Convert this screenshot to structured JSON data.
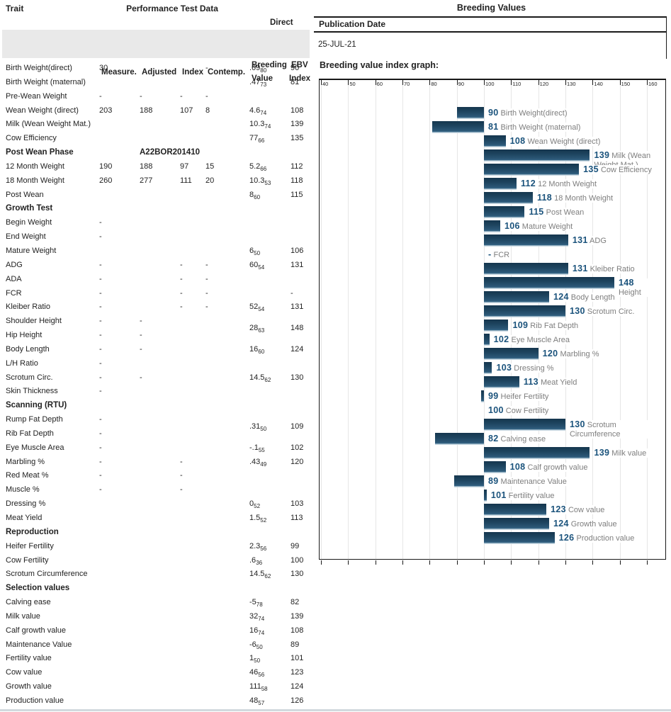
{
  "table": {
    "header": {
      "trait": "Trait",
      "performance": "Performance Test Data",
      "direct": "Direct",
      "breeding": "Breeding",
      "value": "Value",
      "ebv": "EBV",
      "ebv_index": "Index",
      "measure": "Measure.",
      "adjusted": "Adjusted",
      "index": "Index",
      "contemp": "Contemp."
    },
    "rows": [
      {
        "trait": "Birth Weight(direct)",
        "measure": "30",
        "contemp": "-",
        "dbv": ".69",
        "acc": "80",
        "ebv": "90"
      },
      {
        "trait": "Birth Weight (maternal)",
        "dbv": ".47",
        "acc": "73",
        "ebv": "81"
      },
      {
        "trait": "Pre-Wean Weight",
        "measure": "-",
        "adjusted": "-",
        "index": "-",
        "contemp": "-"
      },
      {
        "trait": "Wean Weight (direct)",
        "measure": "203",
        "adjusted": "188",
        "index": "107",
        "contemp": "8",
        "dbv": "4.6",
        "acc": "74",
        "ebv": "108"
      },
      {
        "trait": "Milk (Wean Weight Mat.)",
        "dbv": "10.3",
        "acc": "74",
        "ebv": "139"
      },
      {
        "trait": "Cow Efficiency",
        "dbv": "77",
        "acc": "66",
        "ebv": "135"
      },
      {
        "trait": "Post Wean Phase",
        "adjusted": "A22BOR201410",
        "section": true
      },
      {
        "trait": "12 Month Weight",
        "measure": "190",
        "adjusted": "188",
        "index": "97",
        "contemp": "15",
        "dbv": "5.2",
        "acc": "66",
        "ebv": "112"
      },
      {
        "trait": "18 Month Weight",
        "measure": "260",
        "adjusted": "277",
        "index": "111",
        "contemp": "20",
        "dbv": "10.3",
        "acc": "53",
        "ebv": "118"
      },
      {
        "trait": "Post Wean",
        "dbv": "8",
        "acc": "60",
        "ebv": "115"
      },
      {
        "trait": "Growth Test",
        "section": true
      },
      {
        "trait": "Begin Weight",
        "measure": "-"
      },
      {
        "trait": "End Weight",
        "measure": "-"
      },
      {
        "trait": "Mature Weight",
        "dbv": "6",
        "acc": "50",
        "ebv": "106"
      },
      {
        "trait": "ADG",
        "measure": "-",
        "index": "-",
        "contemp": "-",
        "dbv": "60",
        "acc": "54",
        "ebv": "131"
      },
      {
        "trait": "ADA",
        "measure": "-",
        "index": "-",
        "contemp": "-"
      },
      {
        "trait": "FCR",
        "measure": "-",
        "index": "-",
        "contemp": "-",
        "ebv": "-"
      },
      {
        "trait": "Kleiber Ratio",
        "measure": "-",
        "index": "-",
        "contemp": "-",
        "dbv": "52",
        "acc": "54",
        "ebv": "131"
      },
      {
        "trait": "Shoulder Height",
        "measure": "-",
        "adjusted": "-",
        "dbv": "28",
        "acc": "63",
        "ebv": "148",
        "shift": true
      },
      {
        "trait": "Hip Height",
        "measure": "-",
        "adjusted": "-"
      },
      {
        "trait": "Body Length",
        "measure": "-",
        "adjusted": "-",
        "dbv": "16",
        "acc": "60",
        "ebv": "124"
      },
      {
        "trait": "L/H Ratio",
        "measure": "-"
      },
      {
        "trait": "Scrotum Circ.",
        "measure": "-",
        "adjusted": "-",
        "dbv": "14.5",
        "acc": "62",
        "ebv": "130"
      },
      {
        "trait": "Skin Thickness",
        "measure": "-"
      },
      {
        "trait": "Scanning (RTU)",
        "section": true
      },
      {
        "trait": "Rump Fat Depth",
        "measure": "-",
        "dbv": ".31",
        "acc": "50",
        "ebv": "109",
        "shift": true
      },
      {
        "trait": "Rib Fat Depth",
        "measure": "-"
      },
      {
        "trait": "Eye Muscle Area",
        "measure": "-",
        "dbv": "-.1",
        "acc": "55",
        "ebv": "102"
      },
      {
        "trait": "Marbling %",
        "measure": "-",
        "index": "-",
        "dbv": ".43",
        "acc": "49",
        "ebv": "120"
      },
      {
        "trait": "Red Meat %",
        "measure": "-",
        "index": "-"
      },
      {
        "trait": "Muscle %",
        "measure": "-",
        "index": "-"
      },
      {
        "trait": "Dressing %",
        "dbv": "0",
        "acc": "52",
        "ebv": "103"
      },
      {
        "trait": "Meat Yield",
        "dbv": "1.5",
        "acc": "52",
        "ebv": "113"
      },
      {
        "trait": "Reproduction",
        "section": true
      },
      {
        "trait": "Heifer Fertility",
        "dbv": "2.3",
        "acc": "56",
        "ebv": "99"
      },
      {
        "trait": "Cow Fertility",
        "dbv": ".6",
        "acc": "36",
        "ebv": "100"
      },
      {
        "trait": "Scrotum Circumference",
        "dbv": "14.5",
        "acc": "62",
        "ebv": "130"
      },
      {
        "trait": "Selection values",
        "section": true
      },
      {
        "trait": "Calving ease",
        "dbv": "-5",
        "acc": "78",
        "ebv": "82"
      },
      {
        "trait": "Milk value",
        "dbv": "32",
        "acc": "74",
        "ebv": "139"
      },
      {
        "trait": "Calf growth value",
        "dbv": "16",
        "acc": "74",
        "ebv": "108"
      },
      {
        "trait": "Maintenance Value",
        "dbv": "-6",
        "acc": "50",
        "ebv": "89"
      },
      {
        "trait": "Fertility value",
        "dbv": "1",
        "acc": "50",
        "ebv": "101"
      },
      {
        "trait": "Cow value",
        "dbv": "46",
        "acc": "56",
        "ebv": "123"
      },
      {
        "trait": "Growth value",
        "dbv": "111",
        "acc": "58",
        "ebv": "124"
      },
      {
        "trait": "Production value",
        "dbv": "48",
        "acc": "57",
        "ebv": "126"
      }
    ]
  },
  "panel": {
    "title": "Breeding Values",
    "publication_label": "Publication Date",
    "publication_date": "25-JUL-21",
    "graph_title": "Breeding value index graph:"
  },
  "chart_data": {
    "type": "bar",
    "orientation": "horizontal",
    "title": "Breeding value index graph:",
    "baseline": 100,
    "grid": true,
    "axis": {
      "min": 40,
      "max": 160,
      "ticks": [
        40,
        50,
        60,
        70,
        80,
        90,
        100,
        110,
        120,
        130,
        140,
        150,
        160
      ]
    },
    "bars": [
      {
        "value": 90,
        "label": "Birth Weight(direct)"
      },
      {
        "value": 81,
        "label": "Birth Weight (maternal)"
      },
      {
        "value": 108,
        "label": "Wean Weight (direct)"
      },
      {
        "value": 139,
        "label": "Milk (Wean Weight Mat.)",
        "wrap": 90
      },
      {
        "value": 135,
        "label": "Cow Efficiency"
      },
      {
        "value": 112,
        "label": "12 Month Weight"
      },
      {
        "value": 118,
        "label": "18 Month Weight"
      },
      {
        "value": 115,
        "label": "Post Wean"
      },
      {
        "value": 106,
        "label": "Mature Weight"
      },
      {
        "value": 131,
        "label": "ADG"
      },
      {
        "value": null,
        "display": "-",
        "label": "FCR"
      },
      {
        "value": 131,
        "label": "Kleiber Ratio"
      },
      {
        "value": 148,
        "label": "Height",
        "wrap": 50
      },
      {
        "value": 124,
        "label": "Body Length"
      },
      {
        "value": 130,
        "label": "Scrotum Circ."
      },
      {
        "value": 109,
        "label": "Rib Fat Depth"
      },
      {
        "value": 102,
        "label": "Eye Muscle Area"
      },
      {
        "value": 120,
        "label": "Marbling %"
      },
      {
        "value": 103,
        "label": "Dressing %"
      },
      {
        "value": 113,
        "label": "Meat Yield"
      },
      {
        "value": 99,
        "label": "Heifer Fertility"
      },
      {
        "value": 100,
        "label": "Cow Fertility"
      },
      {
        "value": 130,
        "label": "Scrotum Circumference",
        "wrap": 116
      },
      {
        "value": 82,
        "label": "Calving ease"
      },
      {
        "value": 139,
        "label": "Milk value"
      },
      {
        "value": 108,
        "label": "Calf growth value"
      },
      {
        "value": 89,
        "label": "Maintenance Value"
      },
      {
        "value": 101,
        "label": "Fertility value"
      },
      {
        "value": 123,
        "label": "Cow value"
      },
      {
        "value": 124,
        "label": "Growth value"
      },
      {
        "value": 126,
        "label": "Production value"
      }
    ],
    "colors": {
      "bar_top": "#15364e",
      "bar_mid": "#2a5675",
      "bar_bottom_edge": "#c3d4de",
      "value_text": "#1b537c",
      "label_text": "#7e7e7e",
      "grid": "#e6e6e6"
    }
  }
}
